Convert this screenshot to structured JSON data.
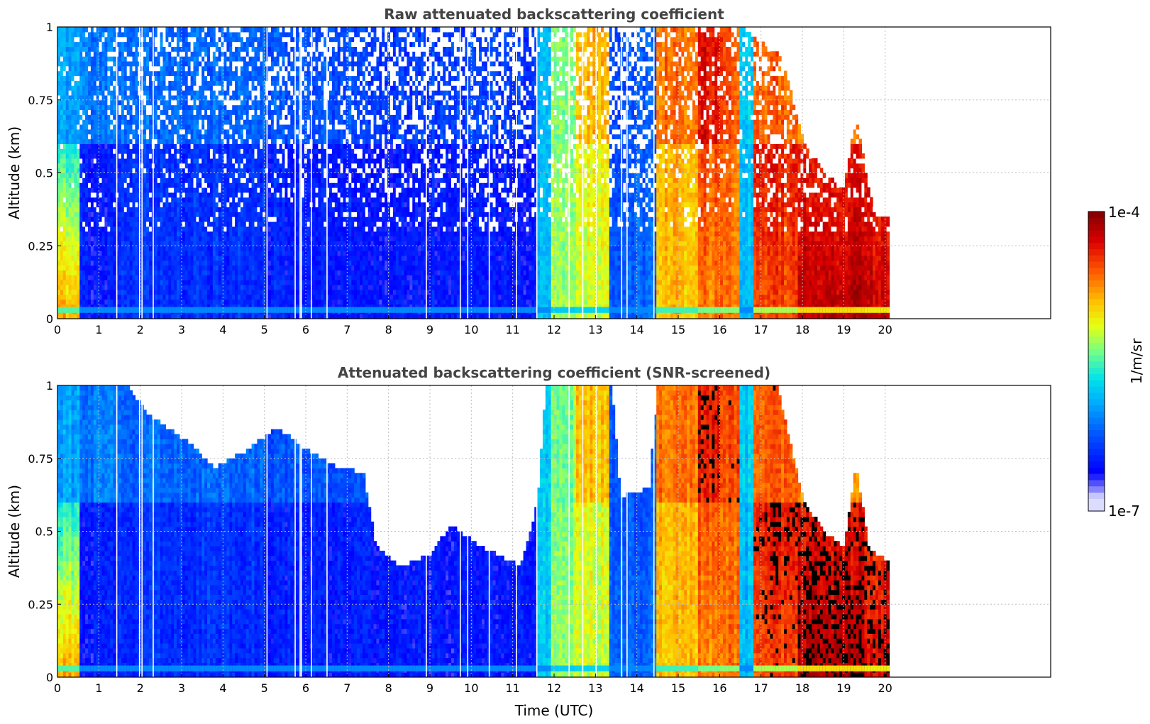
{
  "figure": {
    "time_label": "Time (UTC)"
  },
  "colorbar": {
    "label": "1/m/sr",
    "min_label": "1e-7",
    "max_label": "1e-4",
    "scale": "log",
    "range": [
      1e-07,
      0.0001
    ],
    "colormap": "jet (white at minimum)"
  },
  "chart_data": [
    {
      "type": "heatmap",
      "title": "Raw attenuated backscattering coefficient",
      "xlabel": "",
      "ylabel": "Altitude (km)",
      "xlim": [
        0,
        24
      ],
      "ylim": [
        0,
        1
      ],
      "x_ticks": [
        0,
        1,
        2,
        3,
        4,
        5,
        6,
        7,
        8,
        9,
        10,
        11,
        12,
        13,
        14,
        15,
        16,
        17,
        18,
        19,
        20
      ],
      "y_ticks": [
        0,
        0.25,
        0.5,
        0.75,
        1
      ],
      "y_tick_labels": [
        "0",
        "0.25",
        "0.5",
        "0.75",
        "1"
      ],
      "grid": true,
      "data_extent_hours": [
        0,
        20.1
      ],
      "data_gaps_hours": [
        1.42,
        1.97,
        2.03,
        2.3,
        5.05,
        5.73,
        5.85,
        5.88,
        6.12,
        6.5,
        8.9,
        9.72,
        9.9,
        10.42,
        11.08,
        11.57,
        12.35,
        12.68,
        13.0,
        13.62,
        13.75,
        14.4
      ],
      "segments": [
        {
          "t0": 0.0,
          "t1": 0.55,
          "surface": 0.72,
          "top": 0.28,
          "upper": 0.35,
          "noise": 0.08
        },
        {
          "t0": 0.55,
          "t1": 1.5,
          "surface": 0.16,
          "top": 0.17,
          "upper": 0.3,
          "noise": 0.15
        },
        {
          "t0": 1.5,
          "t1": 5.0,
          "surface": 0.2,
          "top": 0.21,
          "upper": 0.28,
          "noise": 0.3
        },
        {
          "t0": 5.0,
          "t1": 7.5,
          "surface": 0.17,
          "top": 0.18,
          "upper": 0.25,
          "noise": 0.35
        },
        {
          "t0": 7.5,
          "t1": 11.6,
          "surface": 0.16,
          "top": 0.16,
          "upper": 0.22,
          "noise": 0.5
        },
        {
          "t0": 11.6,
          "t1": 11.9,
          "surface": 0.4,
          "top": 0.4,
          "upper": 0.4,
          "noise": 0.2
        },
        {
          "t0": 11.9,
          "t1": 12.5,
          "surface": 0.58,
          "top": 0.55,
          "upper": 0.55,
          "noise": 0.35
        },
        {
          "t0": 12.5,
          "t1": 13.35,
          "surface": 0.6,
          "top": 0.64,
          "upper": 0.7,
          "noise": 0.35
        },
        {
          "t0": 13.35,
          "t1": 14.5,
          "surface": 0.28,
          "top": 0.24,
          "upper": 0.26,
          "noise": 0.55
        },
        {
          "t0": 14.5,
          "t1": 15.5,
          "surface": 0.7,
          "top": 0.72,
          "upper": 0.78,
          "noise": 0.25
        },
        {
          "t0": 15.5,
          "t1": 16.0,
          "surface": 0.76,
          "top": 0.85,
          "upper": 0.88,
          "noise": 0.2
        },
        {
          "t0": 16.0,
          "t1": 16.45,
          "surface": 0.78,
          "top": 0.78,
          "upper": 0.82,
          "noise": 0.25
        },
        {
          "t0": 16.45,
          "t1": 16.8,
          "surface": 0.38,
          "top": 0.38,
          "upper": 0.4,
          "noise": 0.2
        },
        {
          "t0": 16.8,
          "t1": 17.9,
          "surface": 0.82,
          "top": 0.92,
          "upper": 0.8,
          "noise": 0.4
        },
        {
          "t0": 17.9,
          "t1": 19.5,
          "surface": 0.95,
          "top": 0.82,
          "upper": 0.75,
          "noise": 0.5
        },
        {
          "t0": 19.5,
          "t1": 20.1,
          "surface": 0.92,
          "top": 0.8,
          "upper": 0.75,
          "noise": 0.5
        }
      ],
      "cloud_top_km": [
        {
          "t": 0.0,
          "h": 1.0
        },
        {
          "t": 11.6,
          "h": 1.0
        },
        {
          "t": 14.5,
          "h": 1.0
        },
        {
          "t": 16.5,
          "h": 1.0
        },
        {
          "t": 17.5,
          "h": 0.9
        },
        {
          "t": 18.0,
          "h": 0.62
        },
        {
          "t": 18.5,
          "h": 0.5
        },
        {
          "t": 19.0,
          "h": 0.45
        },
        {
          "t": 19.3,
          "h": 0.7
        },
        {
          "t": 19.6,
          "h": 0.45
        },
        {
          "t": 19.8,
          "h": 0.35
        },
        {
          "t": 20.1,
          "h": 0.35
        }
      ]
    },
    {
      "type": "heatmap",
      "title": "Attenuated backscattering coefficient (SNR-screened)",
      "xlabel": "Time (UTC)",
      "ylabel": "Altitude (km)",
      "xlim": [
        0,
        24
      ],
      "ylim": [
        0,
        1
      ],
      "x_ticks": [
        0,
        1,
        2,
        3,
        4,
        5,
        6,
        7,
        8,
        9,
        10,
        11,
        12,
        13,
        14,
        15,
        16,
        17,
        18,
        19,
        20
      ],
      "y_ticks": [
        0,
        0.25,
        0.5,
        0.75,
        1
      ],
      "y_tick_labels": [
        "0",
        "0.25",
        "0.5",
        "0.75",
        "1"
      ],
      "grid": true,
      "data_extent_hours": [
        0,
        20.1
      ],
      "screened_top_km": [
        {
          "t": 0.0,
          "h": 1.0
        },
        {
          "t": 1.7,
          "h": 1.0
        },
        {
          "t": 2.2,
          "h": 0.9
        },
        {
          "t": 3.2,
          "h": 0.8
        },
        {
          "t": 3.8,
          "h": 0.72
        },
        {
          "t": 4.6,
          "h": 0.78
        },
        {
          "t": 5.3,
          "h": 0.86
        },
        {
          "t": 6.0,
          "h": 0.78
        },
        {
          "t": 6.8,
          "h": 0.72
        },
        {
          "t": 7.4,
          "h": 0.7
        },
        {
          "t": 7.7,
          "h": 0.45
        },
        {
          "t": 8.3,
          "h": 0.38
        },
        {
          "t": 9.0,
          "h": 0.42
        },
        {
          "t": 9.5,
          "h": 0.52
        },
        {
          "t": 10.2,
          "h": 0.45
        },
        {
          "t": 11.2,
          "h": 0.38
        },
        {
          "t": 11.6,
          "h": 0.6
        },
        {
          "t": 11.8,
          "h": 1.0
        },
        {
          "t": 13.4,
          "h": 1.0
        },
        {
          "t": 13.6,
          "h": 0.62
        },
        {
          "t": 14.3,
          "h": 0.65
        },
        {
          "t": 14.5,
          "h": 1.0
        },
        {
          "t": 17.4,
          "h": 1.0
        },
        {
          "t": 18.0,
          "h": 0.62
        },
        {
          "t": 18.5,
          "h": 0.5
        },
        {
          "t": 19.0,
          "h": 0.45
        },
        {
          "t": 19.3,
          "h": 0.73
        },
        {
          "t": 19.6,
          "h": 0.45
        },
        {
          "t": 19.8,
          "h": 0.42
        },
        {
          "t": 20.1,
          "h": 0.4
        }
      ],
      "saturated_region_hours": [
        15.5,
        20.1
      ]
    }
  ]
}
